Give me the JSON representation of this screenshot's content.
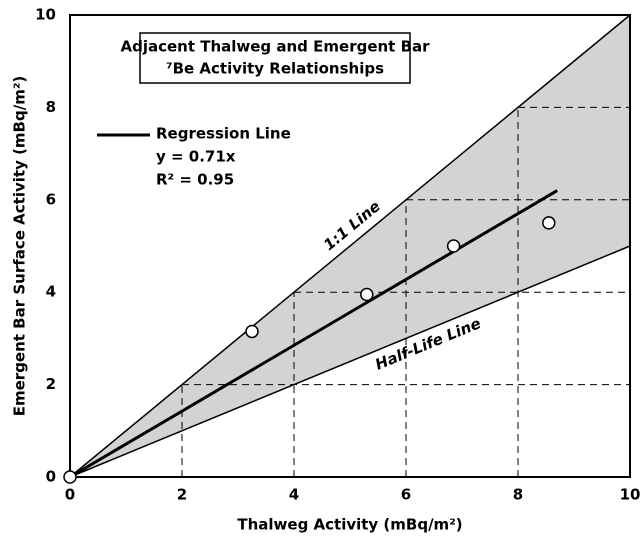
{
  "chart_data": {
    "type": "scatter",
    "title": [
      "Adjacent Thalweg and Emergent Bar",
      "⁷Be Activity Relationships"
    ],
    "x_label": "Thalweg Activity (mBq/m²)",
    "y_label": "Emergent Bar Surface Activity (mBq/m²)",
    "x": [
      0,
      3.25,
      5.3,
      6.85,
      8.55
    ],
    "values": [
      0,
      3.15,
      3.95,
      5.0,
      5.5
    ],
    "lines": [
      {
        "name": "1:1 Line",
        "x": [
          0,
          10
        ],
        "values": [
          0,
          10
        ]
      },
      {
        "name": "Half-Life Line",
        "x": [
          0,
          10
        ],
        "values": [
          0,
          5
        ]
      },
      {
        "name": "Regression Line",
        "x": [
          0,
          8.7
        ],
        "values": [
          0,
          6.2
        ]
      }
    ],
    "annotations": [
      "y = 0.71x",
      "R² = 0.95"
    ],
    "xlim": [
      0,
      10
    ],
    "ylim": [
      0,
      10
    ],
    "xticks": [
      0,
      2,
      4,
      6,
      8,
      10
    ],
    "yticks": [
      0,
      2,
      4,
      6,
      8,
      10
    ],
    "band_color": "#d3d3d3"
  }
}
